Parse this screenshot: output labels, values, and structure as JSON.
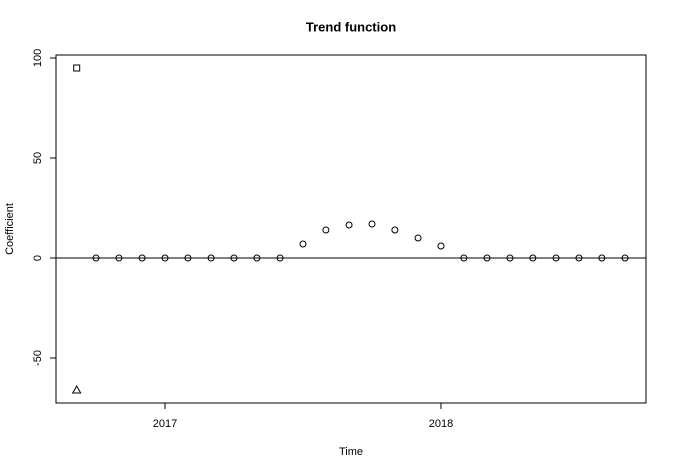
{
  "chart_data": {
    "type": "scatter",
    "title": "Trend function",
    "x_label": "Time",
    "y_label": "Coefficient",
    "xlim": [
      2016.605,
      2018.743
    ],
    "ylim": [
      -72.5,
      101.5
    ],
    "xticks": [
      2017,
      2018
    ],
    "yticks": [
      -50,
      0,
      50,
      100
    ],
    "hline": 0,
    "series": [
      {
        "marker": "circle",
        "color": "#000000",
        "x": [
          2016.75,
          2016.833,
          2016.917,
          2017.0,
          2017.083,
          2017.167,
          2017.25,
          2017.333,
          2017.417,
          2017.5,
          2017.583,
          2017.667,
          2017.75,
          2017.833,
          2017.917,
          2018.0,
          2018.083,
          2018.167,
          2018.25,
          2018.333,
          2018.417,
          2018.5,
          2018.583,
          2018.667
        ],
        "values": [
          0,
          0,
          0,
          0,
          0,
          0,
          0,
          0,
          0,
          7,
          14,
          16.5,
          17,
          14,
          10,
          6,
          0,
          0,
          0,
          0,
          0,
          0,
          0,
          0
        ]
      },
      {
        "marker": "square",
        "color": "#000000",
        "x": [
          2016.68
        ],
        "values": [
          95
        ]
      },
      {
        "marker": "triangle",
        "color": "#000000",
        "x": [
          2016.68
        ],
        "values": [
          -66
        ]
      }
    ]
  }
}
